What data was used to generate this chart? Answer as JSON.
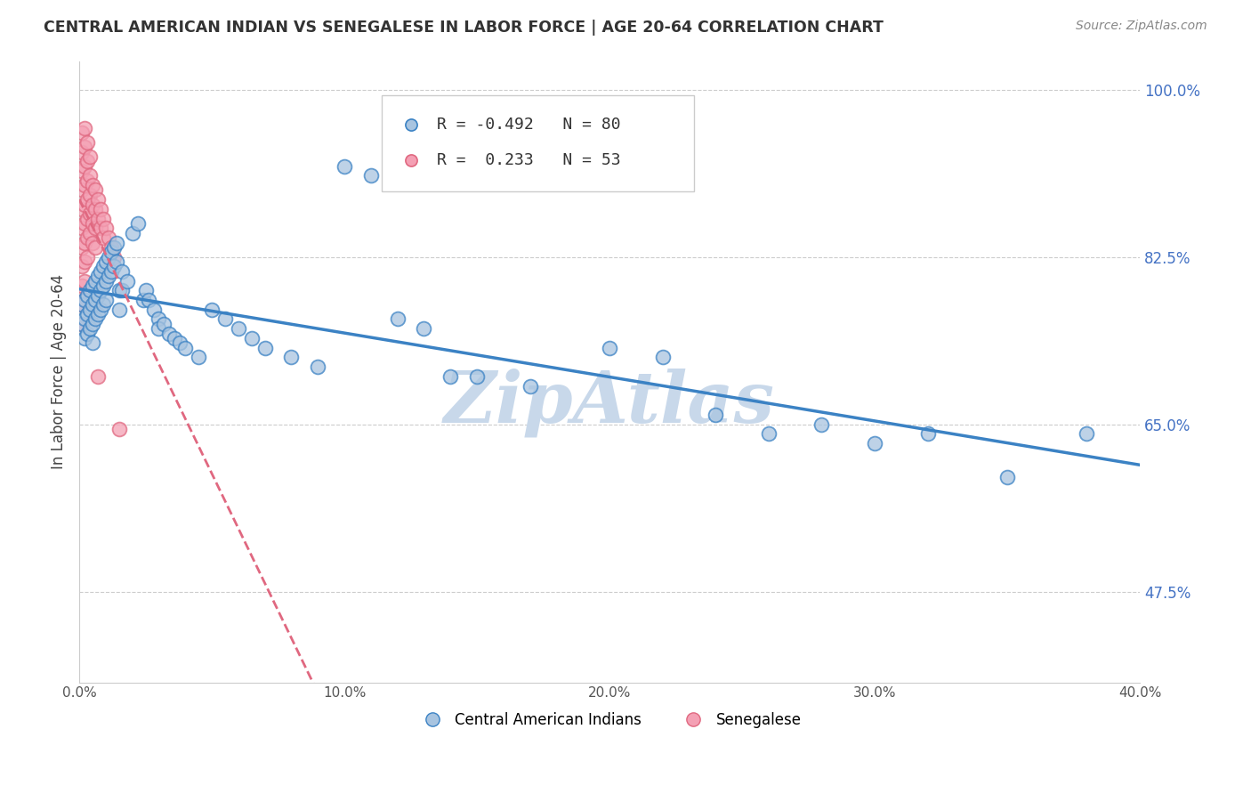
{
  "title": "CENTRAL AMERICAN INDIAN VS SENEGALESE IN LABOR FORCE | AGE 20-64 CORRELATION CHART",
  "source": "Source: ZipAtlas.com",
  "ylabel": "In Labor Force | Age 20-64",
  "legend_label_blue": "Central American Indians",
  "legend_label_pink": "Senegalese",
  "r_blue": -0.492,
  "n_blue": 80,
  "r_pink": 0.233,
  "n_pink": 53,
  "xlim": [
    0.0,
    0.4
  ],
  "ylim": [
    0.38,
    1.03
  ],
  "yticks": [
    0.475,
    0.65,
    0.825,
    1.0
  ],
  "ytick_labels": [
    "47.5%",
    "65.0%",
    "82.5%",
    "100.0%"
  ],
  "xticks": [
    0.0,
    0.1,
    0.2,
    0.3,
    0.4
  ],
  "xtick_labels": [
    "0.0%",
    "10.0%",
    "20.0%",
    "30.0%",
    "40.0%"
  ],
  "color_blue": "#a8c4e0",
  "color_blue_line": "#3b82c4",
  "color_pink": "#f4a0b4",
  "color_pink_line": "#e06880",
  "watermark": "ZipAtlas",
  "watermark_color": "#c8d8ea",
  "blue_points": [
    [
      0.001,
      0.775
    ],
    [
      0.001,
      0.755
    ],
    [
      0.002,
      0.78
    ],
    [
      0.002,
      0.76
    ],
    [
      0.002,
      0.74
    ],
    [
      0.003,
      0.785
    ],
    [
      0.003,
      0.765
    ],
    [
      0.003,
      0.745
    ],
    [
      0.004,
      0.79
    ],
    [
      0.004,
      0.77
    ],
    [
      0.004,
      0.75
    ],
    [
      0.005,
      0.795
    ],
    [
      0.005,
      0.775
    ],
    [
      0.005,
      0.755
    ],
    [
      0.005,
      0.735
    ],
    [
      0.006,
      0.8
    ],
    [
      0.006,
      0.78
    ],
    [
      0.006,
      0.76
    ],
    [
      0.007,
      0.805
    ],
    [
      0.007,
      0.785
    ],
    [
      0.007,
      0.765
    ],
    [
      0.008,
      0.81
    ],
    [
      0.008,
      0.79
    ],
    [
      0.008,
      0.77
    ],
    [
      0.009,
      0.815
    ],
    [
      0.009,
      0.795
    ],
    [
      0.009,
      0.775
    ],
    [
      0.01,
      0.82
    ],
    [
      0.01,
      0.8
    ],
    [
      0.01,
      0.78
    ],
    [
      0.011,
      0.825
    ],
    [
      0.011,
      0.805
    ],
    [
      0.012,
      0.83
    ],
    [
      0.012,
      0.81
    ],
    [
      0.013,
      0.835
    ],
    [
      0.013,
      0.815
    ],
    [
      0.014,
      0.84
    ],
    [
      0.014,
      0.82
    ],
    [
      0.015,
      0.79
    ],
    [
      0.015,
      0.77
    ],
    [
      0.016,
      0.81
    ],
    [
      0.016,
      0.79
    ],
    [
      0.018,
      0.8
    ],
    [
      0.02,
      0.85
    ],
    [
      0.022,
      0.86
    ],
    [
      0.024,
      0.78
    ],
    [
      0.025,
      0.79
    ],
    [
      0.026,
      0.78
    ],
    [
      0.028,
      0.77
    ],
    [
      0.03,
      0.76
    ],
    [
      0.03,
      0.75
    ],
    [
      0.032,
      0.755
    ],
    [
      0.034,
      0.745
    ],
    [
      0.036,
      0.74
    ],
    [
      0.038,
      0.735
    ],
    [
      0.04,
      0.73
    ],
    [
      0.045,
      0.72
    ],
    [
      0.05,
      0.77
    ],
    [
      0.055,
      0.76
    ],
    [
      0.06,
      0.75
    ],
    [
      0.065,
      0.74
    ],
    [
      0.07,
      0.73
    ],
    [
      0.08,
      0.72
    ],
    [
      0.09,
      0.71
    ],
    [
      0.1,
      0.92
    ],
    [
      0.11,
      0.91
    ],
    [
      0.12,
      0.76
    ],
    [
      0.13,
      0.75
    ],
    [
      0.14,
      0.7
    ],
    [
      0.15,
      0.7
    ],
    [
      0.17,
      0.69
    ],
    [
      0.2,
      0.73
    ],
    [
      0.22,
      0.72
    ],
    [
      0.24,
      0.66
    ],
    [
      0.26,
      0.64
    ],
    [
      0.28,
      0.65
    ],
    [
      0.3,
      0.63
    ],
    [
      0.32,
      0.64
    ],
    [
      0.35,
      0.595
    ],
    [
      0.38,
      0.64
    ]
  ],
  "pink_points": [
    [
      0.001,
      0.955
    ],
    [
      0.001,
      0.935
    ],
    [
      0.001,
      0.915
    ],
    [
      0.001,
      0.895
    ],
    [
      0.001,
      0.875
    ],
    [
      0.001,
      0.855
    ],
    [
      0.001,
      0.835
    ],
    [
      0.001,
      0.815
    ],
    [
      0.001,
      0.795
    ],
    [
      0.001,
      0.775
    ],
    [
      0.001,
      0.755
    ],
    [
      0.002,
      0.96
    ],
    [
      0.002,
      0.94
    ],
    [
      0.002,
      0.92
    ],
    [
      0.002,
      0.9
    ],
    [
      0.002,
      0.88
    ],
    [
      0.002,
      0.86
    ],
    [
      0.002,
      0.84
    ],
    [
      0.002,
      0.82
    ],
    [
      0.002,
      0.8
    ],
    [
      0.002,
      0.78
    ],
    [
      0.003,
      0.945
    ],
    [
      0.003,
      0.925
    ],
    [
      0.003,
      0.905
    ],
    [
      0.003,
      0.885
    ],
    [
      0.003,
      0.865
    ],
    [
      0.003,
      0.845
    ],
    [
      0.003,
      0.825
    ],
    [
      0.004,
      0.93
    ],
    [
      0.004,
      0.91
    ],
    [
      0.004,
      0.89
    ],
    [
      0.004,
      0.87
    ],
    [
      0.004,
      0.85
    ],
    [
      0.005,
      0.9
    ],
    [
      0.005,
      0.88
    ],
    [
      0.005,
      0.86
    ],
    [
      0.005,
      0.84
    ],
    [
      0.006,
      0.895
    ],
    [
      0.006,
      0.875
    ],
    [
      0.006,
      0.855
    ],
    [
      0.006,
      0.835
    ],
    [
      0.007,
      0.885
    ],
    [
      0.007,
      0.865
    ],
    [
      0.007,
      0.7
    ],
    [
      0.008,
      0.875
    ],
    [
      0.008,
      0.855
    ],
    [
      0.009,
      0.865
    ],
    [
      0.009,
      0.845
    ],
    [
      0.01,
      0.855
    ],
    [
      0.011,
      0.845
    ],
    [
      0.012,
      0.835
    ],
    [
      0.013,
      0.825
    ],
    [
      0.015,
      0.645
    ]
  ]
}
